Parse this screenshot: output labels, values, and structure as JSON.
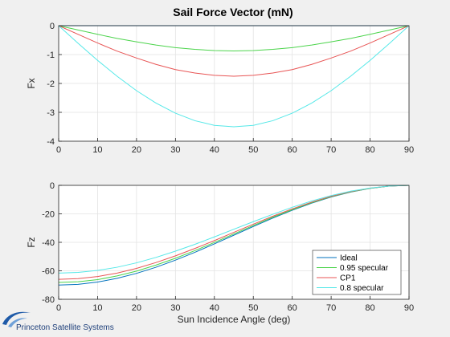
{
  "figure": {
    "title": "Sail Force Vector (mN)",
    "logo_text": "Princeton Satellite Systems",
    "background": "#f0f0f0"
  },
  "chart_data": [
    {
      "type": "line",
      "ylabel": "Fx",
      "xlabel": "",
      "xlim": [
        0,
        90
      ],
      "ylim": [
        -4,
        0
      ],
      "xticks": [
        0,
        10,
        20,
        30,
        40,
        50,
        60,
        70,
        80,
        90
      ],
      "yticks": [
        -4,
        -3,
        -2,
        -1,
        0
      ],
      "grid": true,
      "x": [
        0,
        5,
        10,
        15,
        20,
        25,
        30,
        35,
        40,
        45,
        50,
        55,
        60,
        65,
        70,
        75,
        80,
        85,
        90
      ],
      "series": [
        {
          "name": "Ideal",
          "color": "#0072bd",
          "values": [
            0,
            0,
            0,
            0,
            0,
            0,
            0,
            0,
            0,
            0,
            0,
            0,
            0,
            0,
            0,
            0,
            0,
            0,
            0
          ]
        },
        {
          "name": "0.95 specular",
          "color": "#4cd44c",
          "values": [
            0,
            -0.15,
            -0.3,
            -0.44,
            -0.56,
            -0.67,
            -0.76,
            -0.82,
            -0.86,
            -0.875,
            -0.86,
            -0.82,
            -0.76,
            -0.67,
            -0.56,
            -0.44,
            -0.3,
            -0.15,
            0
          ]
        },
        {
          "name": "CP1",
          "color": "#e85555",
          "values": [
            0,
            -0.3,
            -0.6,
            -0.88,
            -1.12,
            -1.34,
            -1.52,
            -1.64,
            -1.72,
            -1.75,
            -1.72,
            -1.64,
            -1.52,
            -1.34,
            -1.12,
            -0.88,
            -0.6,
            -0.3,
            0
          ]
        },
        {
          "name": "0.8 specular",
          "color": "#55e8e8",
          "values": [
            0,
            -0.61,
            -1.2,
            -1.75,
            -2.25,
            -2.68,
            -3.03,
            -3.29,
            -3.45,
            -3.5,
            -3.45,
            -3.29,
            -3.03,
            -2.68,
            -2.25,
            -1.75,
            -1.2,
            -0.61,
            0
          ]
        }
      ]
    },
    {
      "type": "line",
      "ylabel": "Fz",
      "xlabel": "Sun Incidence Angle (deg)",
      "xlim": [
        0,
        90
      ],
      "ylim": [
        -80,
        0
      ],
      "xticks": [
        0,
        10,
        20,
        30,
        40,
        50,
        60,
        70,
        80,
        90
      ],
      "yticks": [
        -80,
        -60,
        -40,
        -20,
        0
      ],
      "grid": true,
      "legend_position": "bottom-right",
      "x": [
        0,
        5,
        10,
        15,
        20,
        25,
        30,
        35,
        40,
        45,
        50,
        55,
        60,
        65,
        70,
        75,
        80,
        85,
        90
      ],
      "series": [
        {
          "name": "Ideal",
          "color": "#0072bd",
          "values": [
            -70,
            -69.5,
            -67.9,
            -65.3,
            -61.8,
            -57.5,
            -52.5,
            -47.0,
            -41.1,
            -35.0,
            -28.9,
            -23.0,
            -17.5,
            -12.5,
            -8.2,
            -4.7,
            -2.1,
            -0.5,
            0
          ]
        },
        {
          "name": "0.95 specular",
          "color": "#4cd44c",
          "values": [
            -68.2,
            -67.7,
            -66.2,
            -63.6,
            -60.2,
            -56.0,
            -51.2,
            -45.8,
            -40.1,
            -34.1,
            -28.2,
            -22.4,
            -17.1,
            -12.2,
            -8.0,
            -4.6,
            -2.1,
            -0.5,
            0
          ]
        },
        {
          "name": "CP1",
          "color": "#e85555",
          "values": [
            -66.0,
            -65.5,
            -64.0,
            -61.6,
            -58.3,
            -54.2,
            -49.5,
            -44.3,
            -38.8,
            -33.0,
            -27.3,
            -21.7,
            -16.5,
            -11.8,
            -7.7,
            -4.4,
            -2.0,
            -0.5,
            0
          ]
        },
        {
          "name": "0.8 specular",
          "color": "#55e8e8",
          "values": [
            -61.6,
            -61.1,
            -59.7,
            -57.5,
            -54.4,
            -50.6,
            -46.2,
            -41.4,
            -36.2,
            -30.8,
            -25.5,
            -20.3,
            -15.4,
            -11.0,
            -7.2,
            -4.1,
            -1.9,
            -0.5,
            0
          ]
        }
      ],
      "legend": [
        "Ideal",
        "0.95 specular",
        "CP1",
        "0.8 specular"
      ]
    }
  ]
}
